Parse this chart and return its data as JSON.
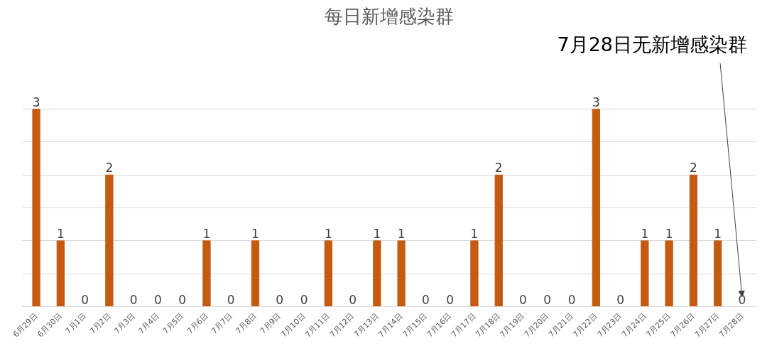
{
  "chart_data": {
    "type": "bar",
    "title": "每日新增感染群",
    "categories": [
      "6月29日",
      "6月30日",
      "7月1日",
      "7月2日",
      "7月3日",
      "7月4日",
      "7月5日",
      "7月6日",
      "7月7日",
      "7月8日",
      "7月9日",
      "7月10日",
      "7月11日",
      "7月12日",
      "7月13日",
      "7月14日",
      "7月15日",
      "7月16日",
      "7月17日",
      "7月18日",
      "7月19日",
      "7月20日",
      "7月21日",
      "7月22日",
      "7月23日",
      "7月24日",
      "7月25日",
      "7月26日",
      "7月27日",
      "7月28日"
    ],
    "values": [
      3,
      1,
      0,
      2,
      0,
      0,
      0,
      1,
      0,
      1,
      0,
      0,
      1,
      0,
      1,
      1,
      0,
      0,
      1,
      2,
      0,
      0,
      0,
      3,
      0,
      1,
      1,
      2,
      1,
      0
    ],
    "color": "#c55a11",
    "yticks": [
      {
        "value": 0,
        "label": null
      },
      {
        "value": 0.5,
        "label": null
      },
      {
        "value": 1,
        "label": null
      },
      {
        "value": 1.5,
        "label": null
      },
      {
        "value": 2,
        "label": null
      },
      {
        "value": 2.5,
        "label": null
      },
      {
        "value": 3,
        "label": null
      }
    ],
    "grid": "y",
    "tick_labels": "x",
    "data_labels": true,
    "annotations": [
      "7月28日无新增感染群"
    ]
  }
}
